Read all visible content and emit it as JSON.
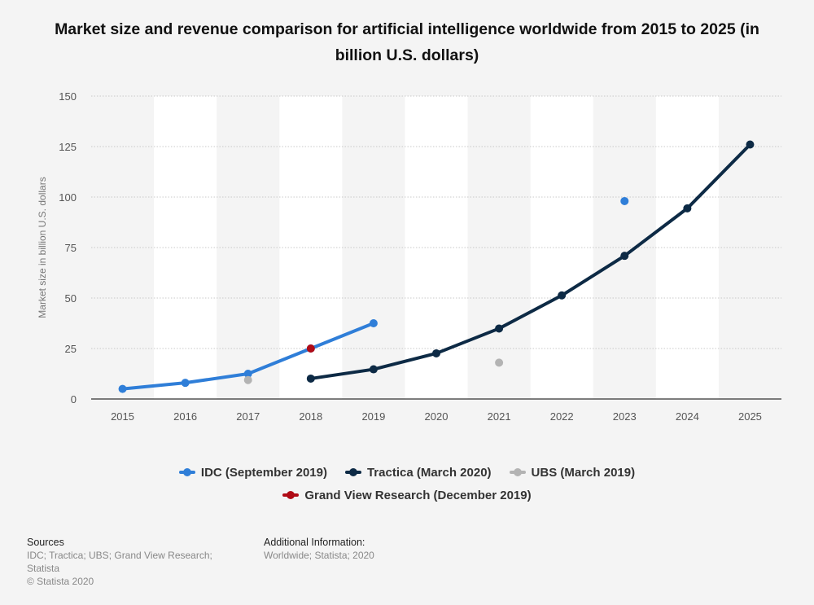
{
  "title": "Market size and revenue comparison for artificial intelligence worldwide from 2015 to 2025 (in billion U.S. dollars)",
  "sources": {
    "heading": "Sources",
    "text": "IDC; Tractica; UBS; Grand View Research; Statista",
    "copyright": "© Statista 2020"
  },
  "additional_info": {
    "heading": "Additional Information:",
    "text": "Worldwide; Statista; 2020"
  },
  "chart_data": {
    "type": "line",
    "title": "Market size and revenue comparison for artificial intelligence worldwide from 2015 to 2025 (in billion U.S. dollars)",
    "xlabel": "",
    "ylabel": "Market size in billion U.S. dollars",
    "categories": [
      "2015",
      "2016",
      "2017",
      "2018",
      "2019",
      "2020",
      "2021",
      "2022",
      "2023",
      "2024",
      "2025"
    ],
    "yticks": [
      0,
      25,
      50,
      75,
      100,
      125,
      150
    ],
    "ylim": [
      0,
      150
    ],
    "grid": true,
    "legend_position": "bottom",
    "series": [
      {
        "name": "IDC (September 2019)",
        "color": "#2f7ed8",
        "line": true,
        "values": [
          5,
          8,
          12.5,
          25,
          37.5,
          null,
          null,
          null,
          98,
          null,
          null
        ]
      },
      {
        "name": "Tractica (March 2020)",
        "color": "#0d2a45",
        "line": true,
        "values": [
          null,
          null,
          null,
          10.1,
          14.7,
          22.6,
          34.9,
          51.3,
          70.9,
          94.4,
          126
        ]
      },
      {
        "name": "UBS (March 2019)",
        "color": "#b3b3b3",
        "line": false,
        "values": [
          null,
          null,
          9.4,
          null,
          null,
          null,
          18,
          null,
          null,
          null,
          null
        ]
      },
      {
        "name": "Grand View Research (December 2019)",
        "color": "#b00b16",
        "line": false,
        "values": [
          null,
          null,
          null,
          25,
          null,
          null,
          null,
          null,
          null,
          null,
          null
        ]
      }
    ]
  }
}
